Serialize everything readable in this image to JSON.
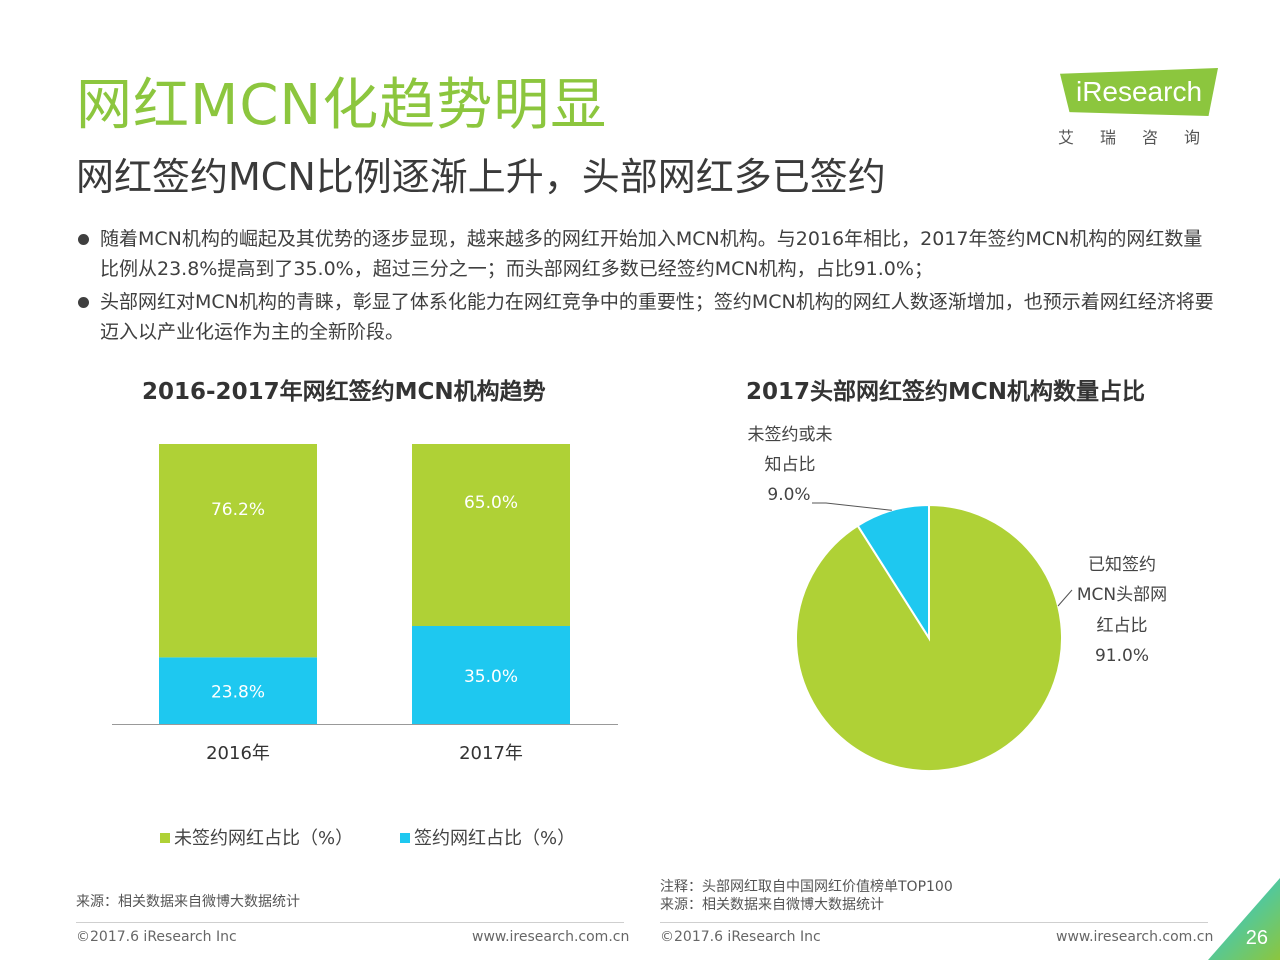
{
  "header": {
    "title": "网红MCN化趋势明显",
    "subtitle": "网红签约MCN比例逐渐上升，头部网红多已签约"
  },
  "logo": {
    "brand": "iResearch",
    "cn": "艾瑞咨询"
  },
  "bullets": [
    "随着MCN机构的崛起及其优势的逐步显现，越来越多的网红开始加入MCN机构。与2016年相比，2017年签约MCN机构的网红数量比例从23.8%提高到了35.0%，超过三分之一；而头部网红多数已经签约MCN机构，占比91.0%；",
    "头部网红对MCN机构的青睐，彰显了体系化能力在网红竞争中的重要性；签约MCN机构的网红人数逐渐增加，也预示着网红经济将要迈入以产业化运作为主的全新阶段。"
  ],
  "chart_data": [
    {
      "type": "bar",
      "stacked": true,
      "title": "2016-2017年网红签约MCN机构趋势",
      "categories": [
        "2016年",
        "2017年"
      ],
      "series": [
        {
          "name": "签约网红占比（%）",
          "values": [
            23.8,
            35.0
          ],
          "labels": [
            "23.8%",
            "35.0%"
          ],
          "color": "#1ec8f0"
        },
        {
          "name": "未签约网红占比（%）",
          "values": [
            76.2,
            65.0
          ],
          "labels": [
            "76.2%",
            "65.0%"
          ],
          "color": "#afd136"
        }
      ],
      "ylim": [
        0,
        100
      ],
      "grid": false,
      "legend": "bottom"
    },
    {
      "type": "pie",
      "title": "2017头部网红签约MCN机构数量占比",
      "slices": [
        {
          "label": [
            "已知签约",
            "MCN头部网",
            "红占比"
          ],
          "value": 91.0,
          "display": "91.0%",
          "color": "#afd136"
        },
        {
          "label": [
            "未签约或未",
            "知占比"
          ],
          "value": 9.0,
          "display": "9.0%",
          "color": "#1ec8f0"
        }
      ]
    }
  ],
  "legend_items": [
    {
      "label": "未签约网红占比（%）",
      "color": "#afd136"
    },
    {
      "label": "签约网红占比（%）",
      "color": "#1ec8f0"
    }
  ],
  "footnotes": {
    "left_source": "来源：相关数据来自微博大数据统计",
    "right_note": "注释：头部网红取自中国网红价值榜单TOP100",
    "right_source": "来源：相关数据来自微博大数据统计"
  },
  "footer": {
    "copyright_left": "©2017.6 iResearch Inc",
    "url_left": "www.iresearch.com.cn",
    "copyright_right": "©2017.6 iResearch Inc",
    "url_right": "www.iresearch.com.cn",
    "page": "26"
  }
}
